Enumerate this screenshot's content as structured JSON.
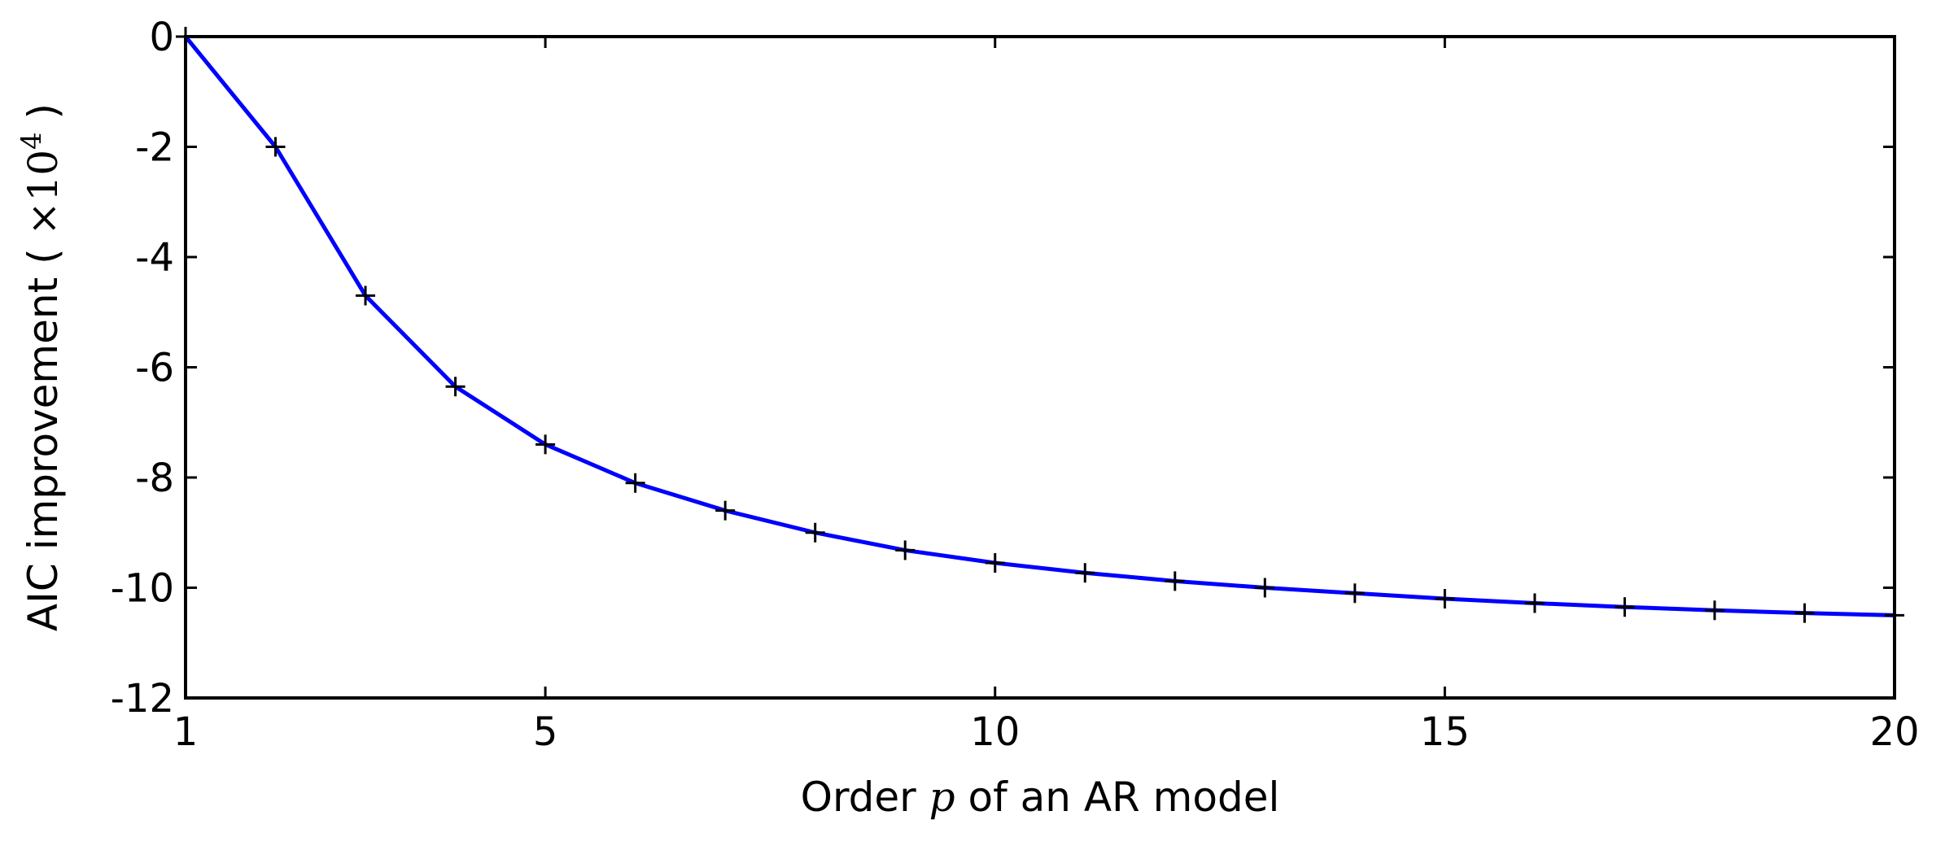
{
  "chart_data": {
    "type": "line",
    "title": "",
    "xlabel": {
      "prefix": "Order ",
      "var": "p",
      "suffix": " of an AR model"
    },
    "ylabel": {
      "text": "AIC improvement ( ",
      "mult": "×10",
      "exp": "4",
      "close": " )"
    },
    "xlim": [
      1,
      20
    ],
    "ylim": [
      -12,
      0
    ],
    "xticks": [
      1,
      5,
      10,
      15,
      20
    ],
    "xtick_labels": [
      "1",
      "5",
      "10",
      "15",
      "20"
    ],
    "yticks": [
      0,
      -2,
      -4,
      -6,
      -8,
      -10,
      -12
    ],
    "ytick_labels": [
      "0",
      "-2",
      "-4",
      "-6",
      "-8",
      "-10",
      "-12"
    ],
    "grid": false,
    "series": [
      {
        "color": "#0000ff",
        "marker": "+",
        "x": [
          1,
          2,
          3,
          4,
          5,
          6,
          7,
          8,
          9,
          10,
          11,
          12,
          13,
          14,
          15,
          16,
          17,
          18,
          19,
          20
        ],
        "y": [
          0,
          -2.0,
          -4.7,
          -6.35,
          -7.4,
          -8.1,
          -8.6,
          -9.0,
          -9.32,
          -9.55,
          -9.73,
          -9.88,
          -10.0,
          -10.1,
          -10.2,
          -10.28,
          -10.35,
          -10.41,
          -10.46,
          -10.5
        ]
      }
    ]
  }
}
